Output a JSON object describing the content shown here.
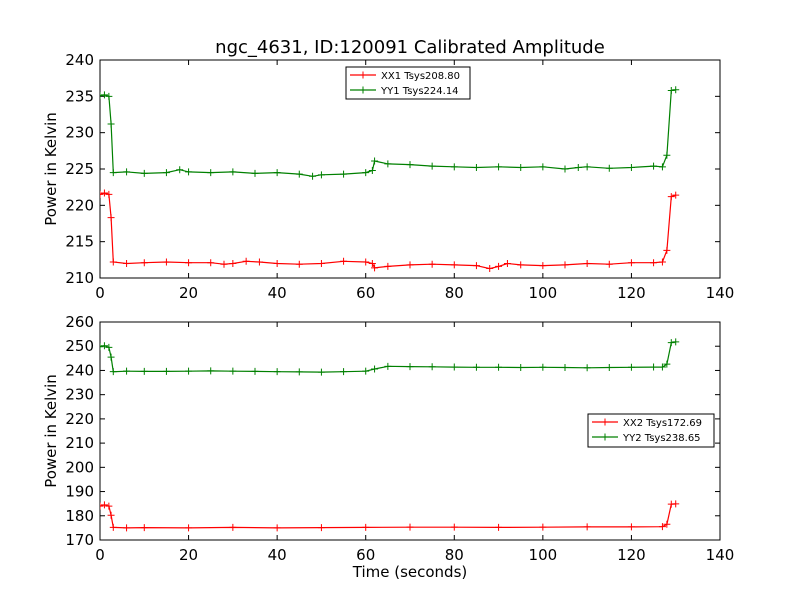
{
  "chart_data": [
    {
      "type": "line",
      "title": "ngc_4631, ID:120091 Calibrated Amplitude",
      "xlabel": "",
      "ylabel": "Power in Kelvin",
      "xlim": [
        0,
        140
      ],
      "ylim": [
        210,
        240
      ],
      "xticks": [
        0,
        20,
        40,
        60,
        80,
        100,
        120,
        140
      ],
      "yticks": [
        210,
        215,
        220,
        225,
        230,
        235,
        240
      ],
      "grid": false,
      "legend_position": "top-center",
      "series": [
        {
          "name": "XX1 Tsys208.80",
          "color": "#ff0000",
          "marker": "plus",
          "x": [
            0,
            1,
            2,
            2.5,
            3,
            6,
            10,
            15,
            20,
            25,
            28,
            30,
            33,
            36,
            40,
            45,
            50,
            55,
            60,
            61.5,
            62,
            65,
            70,
            75,
            80,
            85,
            88,
            90,
            92,
            95,
            100,
            105,
            110,
            115,
            120,
            125,
            127,
            128,
            129,
            130
          ],
          "y": [
            221.5,
            221.7,
            221.5,
            218.3,
            212.2,
            212.0,
            212.1,
            212.2,
            212.1,
            212.1,
            211.9,
            212.0,
            212.3,
            212.2,
            212.0,
            211.9,
            212.0,
            212.3,
            212.2,
            212.0,
            211.4,
            211.6,
            211.8,
            211.9,
            211.8,
            211.7,
            211.3,
            211.6,
            212.0,
            211.8,
            211.7,
            211.8,
            212.0,
            211.9,
            212.1,
            212.1,
            212.2,
            213.8,
            221.2,
            221.4
          ]
        },
        {
          "name": "YY1 Tsys224.14",
          "color": "#008000",
          "marker": "plus",
          "x": [
            0,
            1,
            2,
            2.5,
            3,
            6,
            10,
            15,
            18,
            20,
            25,
            30,
            35,
            40,
            45,
            48,
            50,
            55,
            60,
            61.5,
            62,
            65,
            70,
            75,
            80,
            85,
            90,
            95,
            100,
            105,
            108,
            110,
            115,
            120,
            125,
            127,
            128,
            129,
            130
          ],
          "y": [
            235.1,
            235.2,
            235.0,
            231.2,
            224.5,
            224.6,
            224.4,
            224.5,
            224.9,
            224.6,
            224.5,
            224.6,
            224.4,
            224.5,
            224.3,
            224.0,
            224.2,
            224.3,
            224.5,
            224.8,
            226.1,
            225.7,
            225.6,
            225.4,
            225.3,
            225.2,
            225.3,
            225.2,
            225.3,
            225.0,
            225.2,
            225.3,
            225.1,
            225.2,
            225.4,
            225.3,
            226.9,
            235.8,
            235.9
          ]
        }
      ]
    },
    {
      "type": "line",
      "title": "",
      "xlabel": "Time (seconds)",
      "ylabel": "Power in Kelvin",
      "xlim": [
        0,
        140
      ],
      "ylim": [
        170,
        260
      ],
      "xticks": [
        0,
        20,
        40,
        60,
        80,
        100,
        120,
        140
      ],
      "yticks": [
        170,
        180,
        190,
        200,
        210,
        220,
        230,
        240,
        250,
        260
      ],
      "grid": false,
      "legend_position": "center-right",
      "series": [
        {
          "name": "XX2 Tsys172.69",
          "color": "#ff0000",
          "marker": "plus",
          "x": [
            0,
            1,
            2,
            2.5,
            3,
            6,
            10,
            20,
            30,
            40,
            50,
            60,
            70,
            80,
            90,
            100,
            110,
            120,
            127,
            128,
            129,
            130
          ],
          "y": [
            184.0,
            184.5,
            184.0,
            180.2,
            175.2,
            175.0,
            175.1,
            175.0,
            175.2,
            175.0,
            175.1,
            175.2,
            175.3,
            175.3,
            175.2,
            175.3,
            175.4,
            175.4,
            175.5,
            176.5,
            184.8,
            184.9
          ]
        },
        {
          "name": "YY2 Tsys238.65",
          "color": "#008000",
          "marker": "plus",
          "x": [
            0,
            1,
            2,
            2.5,
            3,
            6,
            10,
            15,
            20,
            25,
            30,
            35,
            40,
            45,
            50,
            55,
            60,
            62,
            65,
            70,
            75,
            80,
            85,
            90,
            95,
            100,
            105,
            110,
            115,
            120,
            125,
            127,
            128,
            129,
            130
          ],
          "y": [
            249.8,
            250.2,
            249.5,
            245.5,
            239.5,
            239.7,
            239.6,
            239.6,
            239.7,
            239.8,
            239.7,
            239.6,
            239.5,
            239.4,
            239.3,
            239.5,
            239.7,
            240.6,
            241.7,
            241.6,
            241.5,
            241.4,
            241.3,
            241.3,
            241.2,
            241.3,
            241.2,
            241.1,
            241.2,
            241.3,
            241.4,
            241.4,
            242.6,
            251.5,
            251.8
          ]
        }
      ]
    }
  ]
}
